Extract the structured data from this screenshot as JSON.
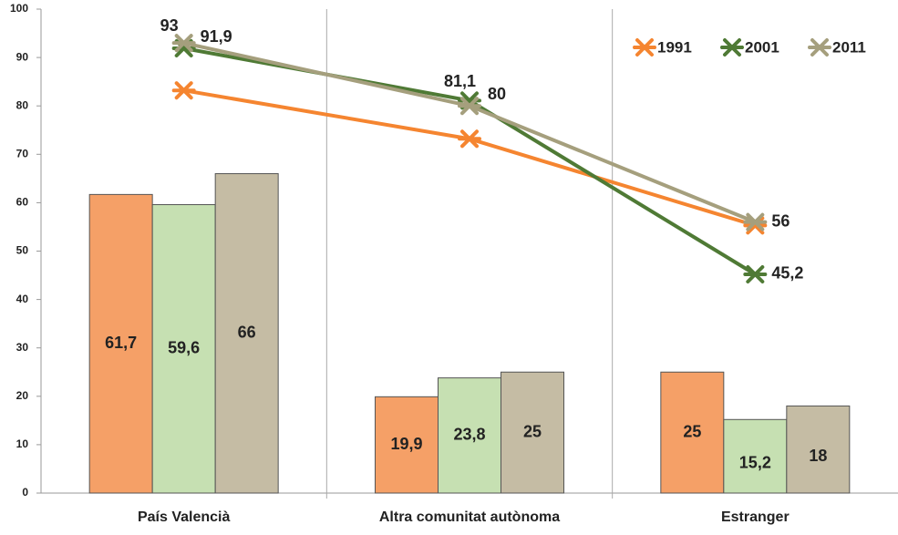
{
  "chart_data": {
    "type": "bar-line",
    "categories": [
      "País Valencià",
      "Altra comunitat autònoma",
      "Estranger"
    ],
    "ylim": [
      0,
      100
    ],
    "yticks": [
      0,
      10,
      20,
      30,
      40,
      50,
      60,
      70,
      80,
      90,
      100
    ],
    "category_separators": true,
    "legend": "top-right",
    "bar_series": [
      {
        "color": "#f5a067",
        "values": [
          61.7,
          19.9,
          25
        ],
        "value_labels": [
          "61,7",
          "19,9",
          "25"
        ]
      },
      {
        "color": "#c6e0b2",
        "values": [
          59.6,
          23.8,
          15.2
        ],
        "value_labels": [
          "59,6",
          "23,8",
          "15,2"
        ]
      },
      {
        "color": "#c5bca4",
        "values": [
          66,
          25,
          18
        ],
        "value_labels": [
          "66",
          "25",
          "18"
        ]
      }
    ],
    "series": [
      {
        "name": "1991",
        "color": "#f58530",
        "values": [
          83.2,
          73.2,
          55.3
        ],
        "data_labels": false
      },
      {
        "name": "2001",
        "color": "#4f7a35",
        "values": [
          91.9,
          81.1,
          45.2
        ],
        "value_labels": [
          "91,9",
          "81,1",
          "45,2"
        ],
        "data_labels": true
      },
      {
        "name": "2011",
        "color": "#a59f7d",
        "values": [
          93,
          80,
          56
        ],
        "data_labels": true
      }
    ]
  }
}
